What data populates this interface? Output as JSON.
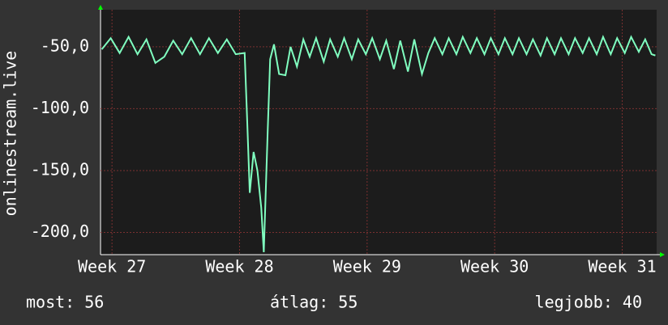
{
  "chart_data": {
    "type": "line",
    "y_label": "onlinestream.live",
    "xlim": [
      26.91,
      31.27
    ],
    "ylim": [
      -218,
      -20
    ],
    "xticks": [
      {
        "value": 27,
        "label": "Week 27"
      },
      {
        "value": 28,
        "label": "Week 28"
      },
      {
        "value": 29,
        "label": "Week 29"
      },
      {
        "value": 30,
        "label": "Week 30"
      },
      {
        "value": 31,
        "label": "Week 31"
      }
    ],
    "yticks": [
      {
        "value": -50,
        "label": "-50,0"
      },
      {
        "value": -100,
        "label": "-100,0"
      },
      {
        "value": -150,
        "label": "-150,0"
      },
      {
        "value": -200,
        "label": "-200,0"
      }
    ],
    "grid": true,
    "x": [
      26.92,
      26.99,
      27.06,
      27.13,
      27.2,
      27.27,
      27.34,
      27.41,
      27.48,
      27.55,
      27.62,
      27.69,
      27.76,
      27.83,
      27.9,
      27.97,
      28.04,
      28.06,
      28.08,
      28.11,
      28.14,
      28.17,
      28.19,
      28.22,
      28.24,
      28.27,
      28.31,
      28.36,
      28.4,
      28.45,
      28.5,
      28.55,
      28.6,
      28.66,
      28.71,
      28.77,
      28.82,
      28.88,
      28.93,
      28.99,
      29.04,
      29.1,
      29.15,
      29.21,
      29.26,
      29.32,
      29.37,
      29.43,
      29.48,
      29.53,
      29.59,
      29.64,
      29.7,
      29.75,
      29.81,
      29.86,
      29.92,
      29.97,
      30.03,
      30.08,
      30.14,
      30.19,
      30.25,
      30.3,
      30.36,
      30.41,
      30.47,
      30.52,
      30.58,
      30.63,
      30.69,
      30.74,
      30.8,
      30.85,
      30.91,
      30.96,
      31.02,
      31.07,
      31.13,
      31.18,
      31.23,
      31.26
    ],
    "series": [
      {
        "color": "#80ffc0",
        "values": [
          -52,
          -43,
          -55,
          -42,
          -56,
          -44,
          -63,
          -58,
          -45,
          -56,
          -43,
          -56,
          -43,
          -55,
          -44,
          -56,
          -55,
          -110,
          -168,
          -135,
          -150,
          -180,
          -216,
          -120,
          -60,
          -48,
          -72,
          -73,
          -50,
          -66,
          -44,
          -58,
          -43,
          -62,
          -44,
          -58,
          -43,
          -60,
          -44,
          -56,
          -43,
          -60,
          -45,
          -68,
          -45,
          -70,
          -44,
          -72,
          -55,
          -43,
          -56,
          -43,
          -56,
          -42,
          -55,
          -43,
          -56,
          -43,
          -56,
          -43,
          -56,
          -43,
          -56,
          -44,
          -57,
          -43,
          -56,
          -43,
          -56,
          -43,
          -55,
          -43,
          -56,
          -42,
          -56,
          -43,
          -55,
          -42,
          -54,
          -44,
          -56,
          -57
        ]
      }
    ],
    "stats": [
      "most: 56",
      "átlag: 55",
      "legjobb: 40"
    ]
  }
}
